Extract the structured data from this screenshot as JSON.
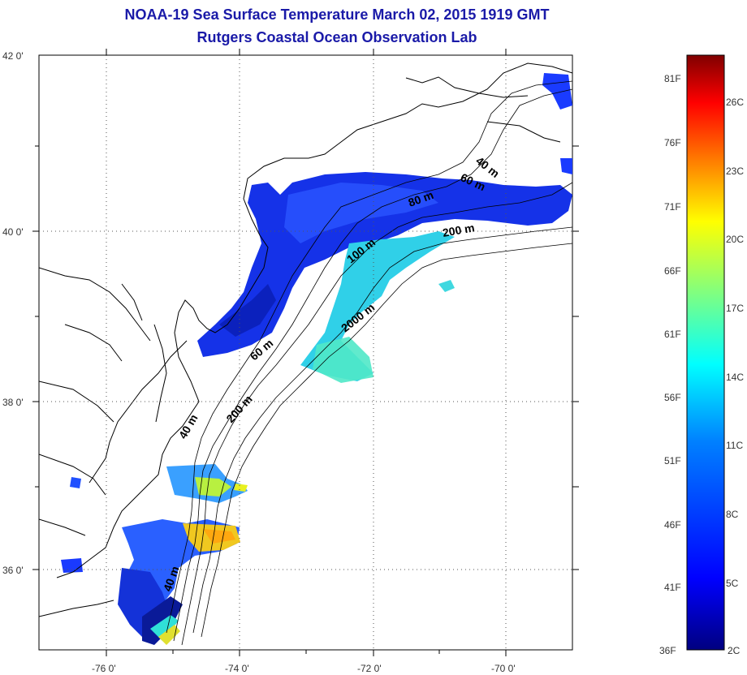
{
  "title": "NOAA-19 Sea Surface Temperature March 02, 2015 1919 GMT",
  "subtitle": "Rutgers Coastal Ocean Observation Lab",
  "lat_labels": [
    "42 0'",
    "40 0'",
    "38 0'",
    "36 0'"
  ],
  "lon_labels": [
    "-76 0'",
    "-74 0'",
    "-72 0'",
    "-70 0'"
  ],
  "depth_labels": {
    "d40a": "40 m",
    "d60a": "60 m",
    "d80": "80 m",
    "d200a": "200 m",
    "d100": "100 m",
    "d2000": "2000 m",
    "d60b": "60 m",
    "d200b": "200 m",
    "d40b": "40 m",
    "d40c": "40 m"
  },
  "colorbar": {
    "fahrenheit": [
      "81F",
      "76F",
      "71F",
      "66F",
      "61F",
      "56F",
      "51F",
      "46F",
      "41F",
      "36F"
    ],
    "celsius": [
      "26C",
      "23C",
      "20C",
      "17C",
      "14C",
      "11C",
      "8C",
      "5C",
      "2C"
    ],
    "colors": [
      "#800000",
      "#ff0000",
      "#ff8000",
      "#ffff00",
      "#80ff80",
      "#00ffff",
      "#0080ff",
      "#0000ff",
      "#000080"
    ]
  }
}
